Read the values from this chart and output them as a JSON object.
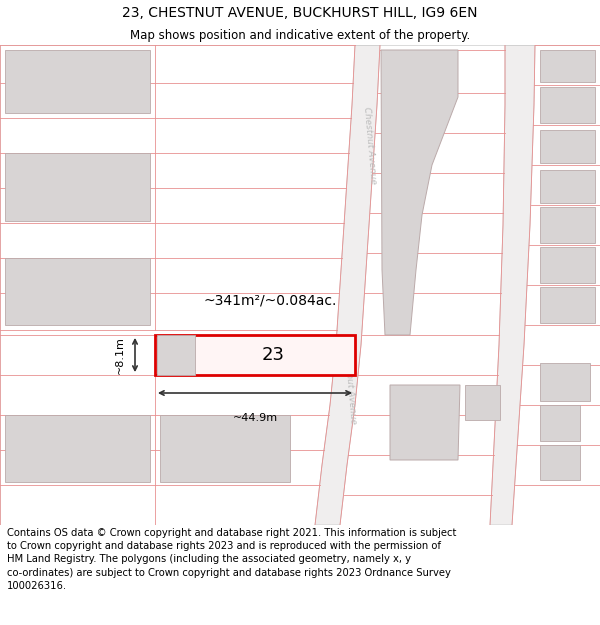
{
  "title": "23, CHESTNUT AVENUE, BUCKHURST HILL, IG9 6EN",
  "subtitle": "Map shows position and indicative extent of the property.",
  "footer": "Contains OS data © Crown copyright and database right 2021. This information is subject\nto Crown copyright and database rights 2023 and is reproduced with the permission of\nHM Land Registry. The polygons (including the associated geometry, namely x, y\nco-ordinates) are subject to Crown copyright and database rights 2023 Ordnance Survey\n100026316.",
  "area_label": "~341m²/~0.084ac.",
  "width_label": "~44.9m",
  "height_label": "~8.1m",
  "plot_number": "23",
  "map_bg": "#ffffff",
  "row_edge_color": "#e89090",
  "plot_red": "#dd0000",
  "bldg_fill": "#d8d4d4",
  "bldg_edge": "#bbaaaa",
  "dim_color": "#333333",
  "road_fill": "#f0eeee",
  "road_edge": "#cccccc",
  "road_label_color": "#bbbbbb",
  "title_fs": 10,
  "subtitle_fs": 8.5,
  "footer_fs": 7.2,
  "area_fs": 10,
  "dim_fs": 8,
  "plot_num_fs": 13
}
